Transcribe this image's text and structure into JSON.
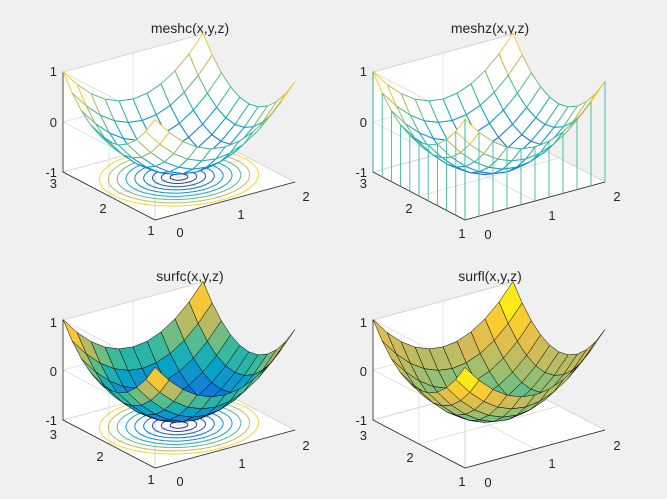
{
  "chart_data": [
    {
      "type": "mesh",
      "title": "meshc(x,y,z)",
      "surface": "mesh",
      "extra": "contour",
      "x_ticks": [
        "0",
        "1",
        "2"
      ],
      "y_ticks": [
        "1",
        "2",
        "3"
      ],
      "z_ticks": [
        "-1",
        "0",
        "1"
      ],
      "xlim": [
        0,
        2
      ],
      "ylim": [
        1,
        3
      ],
      "zlim": [
        -1,
        1
      ]
    },
    {
      "type": "mesh",
      "title": "meshz(x,y,z)",
      "surface": "mesh",
      "extra": "curtain",
      "x_ticks": [
        "0",
        "1",
        "2"
      ],
      "y_ticks": [
        "1",
        "2",
        "3"
      ],
      "z_ticks": [
        "-1",
        "0",
        "1"
      ],
      "xlim": [
        0,
        2
      ],
      "ylim": [
        1,
        3
      ],
      "zlim": [
        -1,
        1
      ]
    },
    {
      "type": "surface",
      "title": "surfc(x,y,z)",
      "surface": "surf",
      "extra": "contour",
      "x_ticks": [
        "0",
        "1",
        "2"
      ],
      "y_ticks": [
        "1",
        "2",
        "3"
      ],
      "z_ticks": [
        "-1",
        "0",
        "1"
      ],
      "xlim": [
        0,
        2
      ],
      "ylim": [
        1,
        3
      ],
      "zlim": [
        -1,
        1
      ]
    },
    {
      "type": "surface",
      "title": "surfl(x,y,z)",
      "surface": "surfl",
      "extra": "none",
      "x_ticks": [
        "0",
        "1",
        "2"
      ],
      "y_ticks": [
        "1",
        "2",
        "3"
      ],
      "z_ticks": [
        "-1",
        "0",
        "1"
      ],
      "xlim": [
        0,
        2
      ],
      "ylim": [
        1,
        3
      ],
      "zlim": [
        -1,
        1
      ]
    }
  ],
  "colors": {
    "background": "#f0f0f0",
    "axis": "#262626",
    "box": "#ffffff",
    "grid": "#dcdcdc"
  }
}
